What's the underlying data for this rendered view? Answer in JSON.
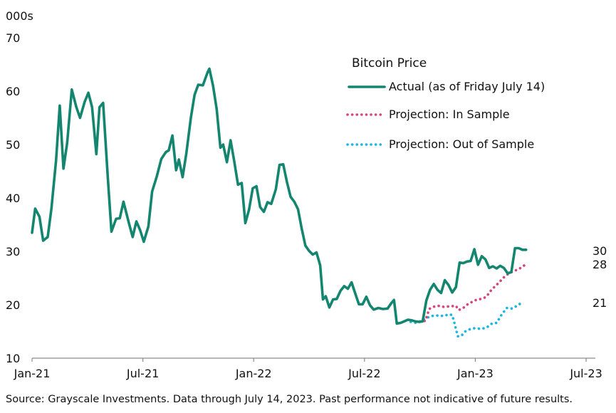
{
  "chart_data": {
    "type": "line",
    "units_label": "000s",
    "yticks": [
      10,
      20,
      30,
      40,
      50,
      60,
      70
    ],
    "ylim": [
      10,
      70
    ],
    "xlim": [
      0,
      30.5
    ],
    "xticks": [
      {
        "label": "Jan-21",
        "x": 0
      },
      {
        "label": "Jul-21",
        "x": 6
      },
      {
        "label": "Jan-22",
        "x": 12
      },
      {
        "label": "Jul-22",
        "x": 18
      },
      {
        "label": "Jan-23",
        "x": 24
      },
      {
        "label": "Jul-23",
        "x": 30
      }
    ],
    "legend": {
      "title": "Bitcoin Price",
      "entries": [
        {
          "label": "Actual (as of Friday July 14)",
          "color": "#14856E",
          "style": "solid"
        },
        {
          "label": "Projection: In Sample",
          "color": "#D6457E",
          "style": "dotted"
        },
        {
          "label": "Projection: Out of Sample",
          "color": "#1CB6E3",
          "style": "dotted"
        }
      ]
    },
    "series": [
      {
        "name": "Actual (as of Friday July 14)",
        "color": "#14856E",
        "end_label": "30",
        "points": [
          [
            0.0,
            33.5
          ],
          [
            0.17,
            38
          ],
          [
            0.4,
            36.5
          ],
          [
            0.6,
            32
          ],
          [
            0.85,
            32.7
          ],
          [
            1.05,
            38
          ],
          [
            1.3,
            47
          ],
          [
            1.5,
            57.3
          ],
          [
            1.7,
            45.5
          ],
          [
            1.9,
            50.3
          ],
          [
            2.15,
            60.3
          ],
          [
            2.4,
            57
          ],
          [
            2.6,
            55
          ],
          [
            2.85,
            58
          ],
          [
            3.05,
            59.7
          ],
          [
            3.25,
            57
          ],
          [
            3.48,
            48.2
          ],
          [
            3.65,
            57
          ],
          [
            3.85,
            57.8
          ],
          [
            4.1,
            44
          ],
          [
            4.3,
            33.7
          ],
          [
            4.55,
            36.1
          ],
          [
            4.75,
            36.2
          ],
          [
            4.95,
            39.3
          ],
          [
            5.25,
            35.2
          ],
          [
            5.45,
            32.7
          ],
          [
            5.65,
            35.6
          ],
          [
            5.85,
            34
          ],
          [
            6.05,
            31.8
          ],
          [
            6.3,
            34.7
          ],
          [
            6.5,
            41.2
          ],
          [
            6.75,
            44
          ],
          [
            7.0,
            47.3
          ],
          [
            7.25,
            48.6
          ],
          [
            7.4,
            48.9
          ],
          [
            7.6,
            51.7
          ],
          [
            7.8,
            45.2
          ],
          [
            7.95,
            47.2
          ],
          [
            8.15,
            43.9
          ],
          [
            8.35,
            48.3
          ],
          [
            8.6,
            55
          ],
          [
            8.8,
            59.3
          ],
          [
            9.0,
            61.2
          ],
          [
            9.25,
            61.1
          ],
          [
            9.5,
            63.5
          ],
          [
            9.6,
            64.2
          ],
          [
            9.8,
            61
          ],
          [
            10.0,
            56.6
          ],
          [
            10.2,
            49.4
          ],
          [
            10.35,
            50
          ],
          [
            10.55,
            46.7
          ],
          [
            10.75,
            50.8
          ],
          [
            10.95,
            46.8
          ],
          [
            11.15,
            42.5
          ],
          [
            11.35,
            42.8
          ],
          [
            11.55,
            35.3
          ],
          [
            11.75,
            37.8
          ],
          [
            11.95,
            41.8
          ],
          [
            12.15,
            42.2
          ],
          [
            12.35,
            38.3
          ],
          [
            12.55,
            37.4
          ],
          [
            12.75,
            39.2
          ],
          [
            12.95,
            38.9
          ],
          [
            13.2,
            41.6
          ],
          [
            13.4,
            46.2
          ],
          [
            13.6,
            46.3
          ],
          [
            13.8,
            43
          ],
          [
            14.0,
            40.2
          ],
          [
            14.2,
            39.3
          ],
          [
            14.4,
            37.9
          ],
          [
            14.6,
            34.3
          ],
          [
            14.8,
            31.1
          ],
          [
            15.0,
            30.1
          ],
          [
            15.2,
            29.4
          ],
          [
            15.4,
            29.8
          ],
          [
            15.6,
            27.4
          ],
          [
            15.75,
            21
          ],
          [
            15.9,
            21.6
          ],
          [
            16.1,
            19.5
          ],
          [
            16.3,
            21
          ],
          [
            16.5,
            21.1
          ],
          [
            16.7,
            22.6
          ],
          [
            16.9,
            23.5
          ],
          [
            17.1,
            23
          ],
          [
            17.3,
            24.2
          ],
          [
            17.5,
            22.1
          ],
          [
            17.7,
            20.1
          ],
          [
            17.9,
            20.1
          ],
          [
            18.1,
            21.5
          ],
          [
            18.3,
            19.9
          ],
          [
            18.5,
            19.1
          ],
          [
            18.75,
            19.4
          ],
          [
            19.0,
            19.2
          ],
          [
            19.25,
            19.3
          ],
          [
            19.45,
            20.3
          ],
          [
            19.6,
            20.9
          ],
          [
            19.75,
            16.5
          ],
          [
            19.95,
            16.6
          ],
          [
            20.15,
            16.9
          ],
          [
            20.35,
            17.2
          ],
          [
            20.55,
            17.1
          ],
          [
            20.75,
            16.9
          ],
          [
            20.95,
            16.8
          ],
          [
            21.15,
            16.9
          ],
          [
            21.35,
            20.8
          ],
          [
            21.55,
            22.8
          ],
          [
            21.75,
            23.9
          ],
          [
            21.95,
            22.8
          ],
          [
            22.15,
            22.2
          ],
          [
            22.35,
            24.6
          ],
          [
            22.55,
            23.7
          ],
          [
            22.75,
            22.3
          ],
          [
            22.95,
            23.3
          ],
          [
            23.15,
            27.9
          ],
          [
            23.35,
            27.8
          ],
          [
            23.55,
            28.1
          ],
          [
            23.75,
            28.2
          ],
          [
            23.95,
            30.4
          ],
          [
            24.15,
            27.5
          ],
          [
            24.35,
            29.1
          ],
          [
            24.55,
            28.5
          ],
          [
            24.75,
            26.9
          ],
          [
            24.95,
            27.2
          ],
          [
            25.15,
            26.8
          ],
          [
            25.35,
            27.3
          ],
          [
            25.55,
            26.9
          ],
          [
            25.75,
            25.9
          ],
          [
            25.95,
            26.1
          ],
          [
            26.15,
            30.6
          ],
          [
            26.35,
            30.6
          ],
          [
            26.55,
            30.3
          ],
          [
            26.75,
            30.3
          ]
        ]
      },
      {
        "name": "Projection: In Sample",
        "color": "#D6457E",
        "end_label": "28",
        "points": [
          [
            21.0,
            16.8
          ],
          [
            21.3,
            17
          ],
          [
            21.5,
            19.2
          ],
          [
            21.7,
            19.6
          ],
          [
            22.0,
            19.8
          ],
          [
            22.3,
            19.6
          ],
          [
            22.6,
            19.7
          ],
          [
            22.95,
            19.8
          ],
          [
            23.1,
            19
          ],
          [
            23.35,
            19.4
          ],
          [
            23.55,
            20
          ],
          [
            23.8,
            20.5
          ],
          [
            24.1,
            21
          ],
          [
            24.35,
            21.1
          ],
          [
            24.6,
            21.5
          ],
          [
            24.8,
            22.5
          ],
          [
            25.05,
            23.4
          ],
          [
            25.3,
            24.2
          ],
          [
            25.5,
            25
          ],
          [
            25.75,
            25.7
          ],
          [
            26.0,
            26.2
          ],
          [
            26.3,
            26.6
          ],
          [
            26.55,
            27.1
          ],
          [
            26.8,
            27.8
          ]
        ]
      },
      {
        "name": "Projection: Out of Sample",
        "color": "#1CB6E3",
        "end_label": "21",
        "points": [
          [
            20.5,
            16.8
          ],
          [
            20.8,
            16.6
          ],
          [
            21.0,
            16.9
          ],
          [
            21.3,
            17.4
          ],
          [
            21.6,
            17.9
          ],
          [
            22.0,
            18
          ],
          [
            22.3,
            17.9
          ],
          [
            22.55,
            18.2
          ],
          [
            22.75,
            18.1
          ],
          [
            22.9,
            16.2
          ],
          [
            23.05,
            14.1
          ],
          [
            23.25,
            14.2
          ],
          [
            23.45,
            15
          ],
          [
            23.7,
            15.4
          ],
          [
            23.95,
            15.6
          ],
          [
            24.3,
            15.5
          ],
          [
            24.6,
            15.7
          ],
          [
            24.9,
            16.5
          ],
          [
            25.15,
            16.6
          ],
          [
            25.4,
            18
          ],
          [
            25.7,
            19.4
          ],
          [
            26.0,
            19.3
          ],
          [
            26.3,
            19.9
          ],
          [
            26.55,
            20.5
          ]
        ]
      }
    ]
  },
  "source_note": "Source: Grayscale Investments. Data through July 14, 2023. Past performance not indicative of future results."
}
